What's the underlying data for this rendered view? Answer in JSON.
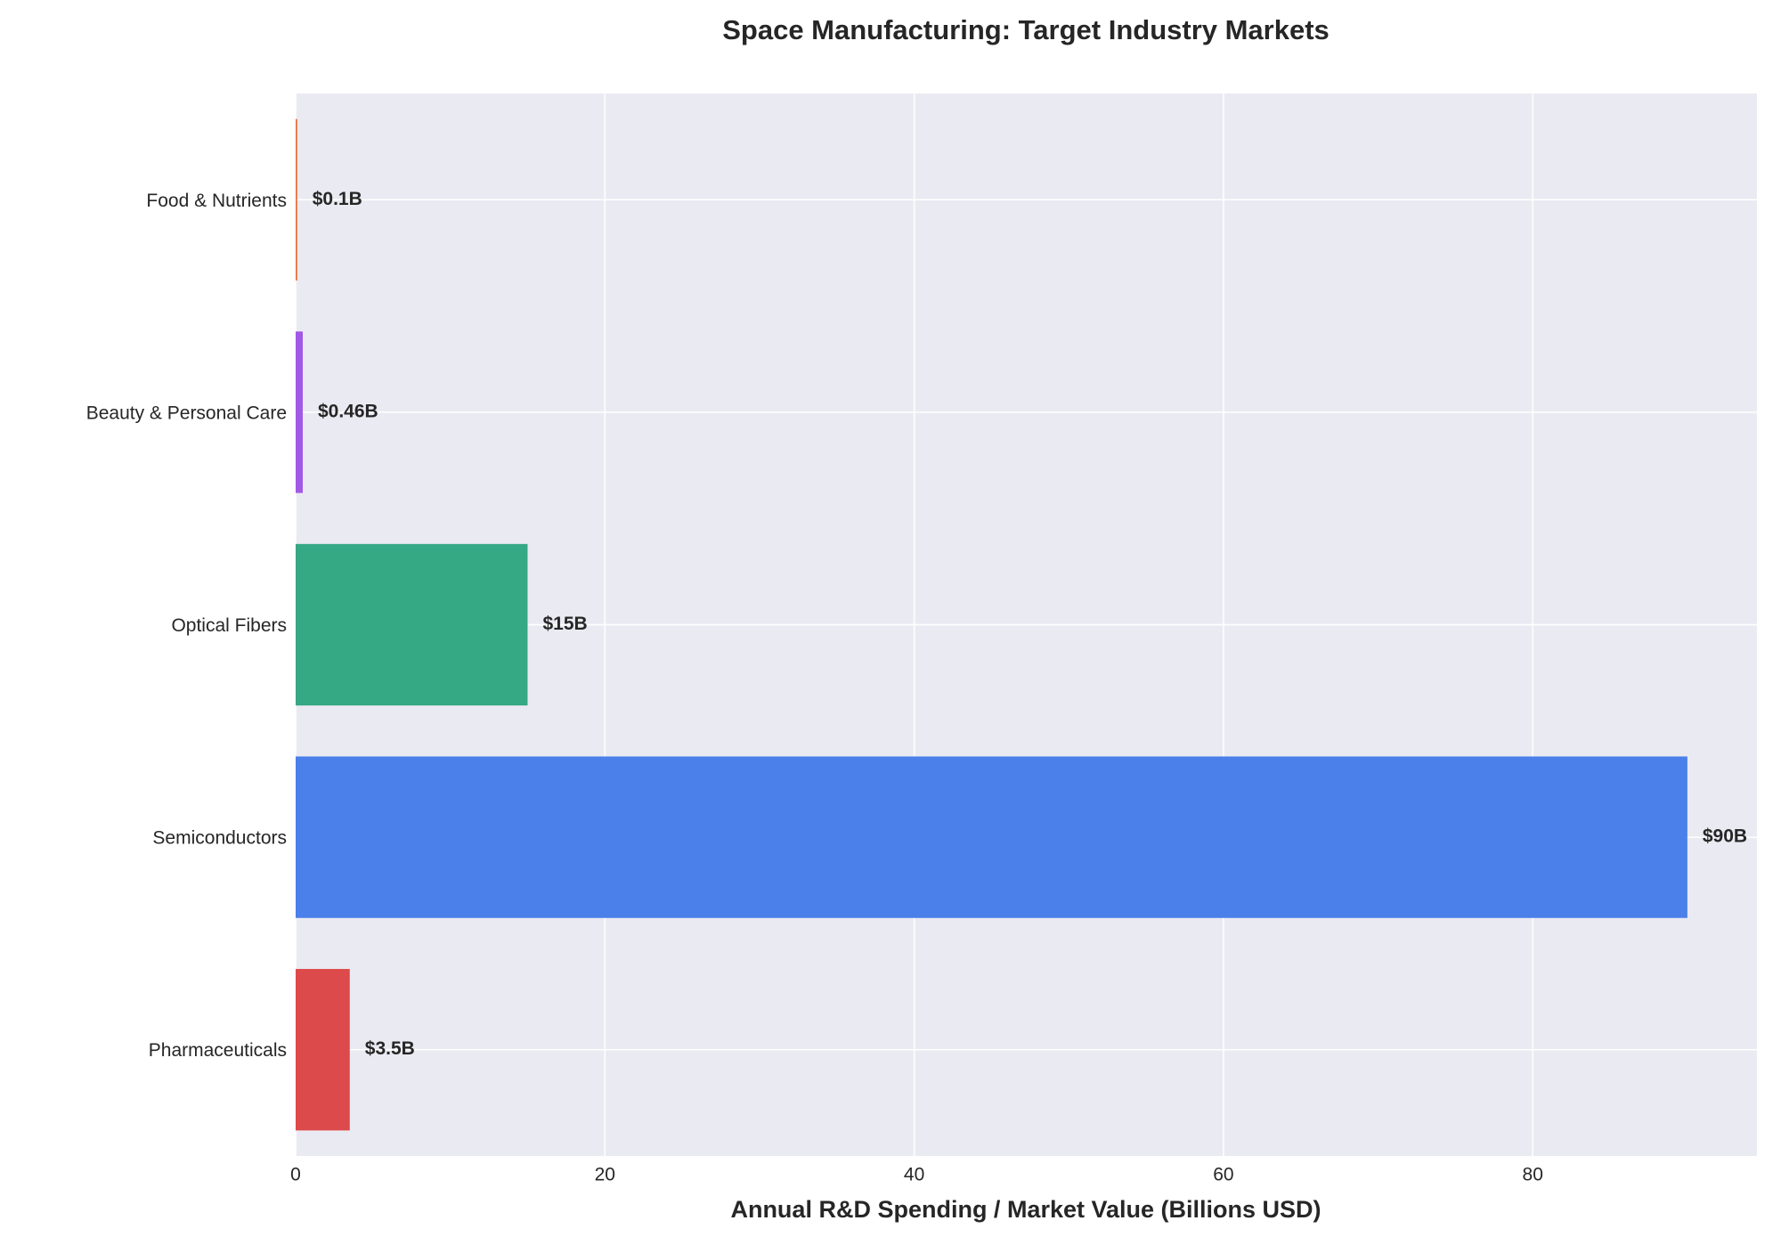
{
  "chart_data": {
    "type": "barh",
    "title": "Space Manufacturing: Target Industry Markets",
    "x_label": "Annual R&D Spending / Market Value (Billions USD)",
    "categories": [
      "Pharmaceuticals",
      "Semiconductors",
      "Optical Fibers",
      "Beauty & Personal Care",
      "Food & Nutrients"
    ],
    "values": [
      3.5,
      90,
      15,
      0.46,
      0.1
    ],
    "value_labels": [
      "$3.5B",
      "$90B",
      "$15B",
      "$0.46B",
      "$0.1B"
    ],
    "colors": [
      "#dc4a4b",
      "#4b7fea",
      "#35a884",
      "#a259e6",
      "#e8703a"
    ],
    "xlim": [
      0,
      94.5
    ],
    "xticks": [
      0,
      20,
      40,
      60,
      80
    ],
    "grid": true
  }
}
